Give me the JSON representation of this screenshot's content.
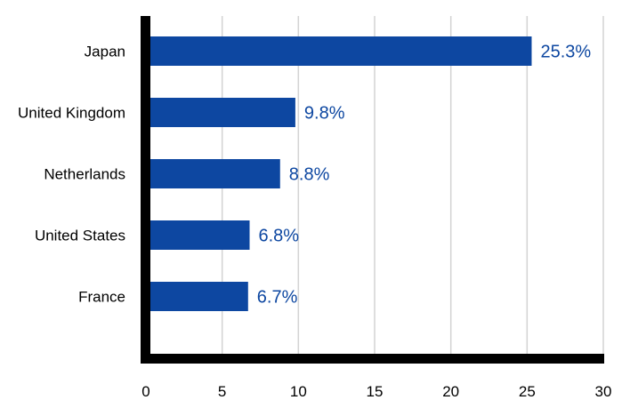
{
  "chart_data": {
    "type": "bar",
    "orientation": "horizontal",
    "categories": [
      "Japan",
      "United Kingdom",
      "Netherlands",
      "United States",
      "France"
    ],
    "values": [
      25.3,
      9.8,
      8.8,
      6.8,
      6.7
    ],
    "data_labels": [
      "25.3%",
      "9.8%",
      "8.8%",
      "6.8%",
      "6.7%"
    ],
    "xlim": [
      0,
      30
    ],
    "xticks": [
      "0",
      "5",
      "10",
      "15",
      "20",
      "25",
      "30"
    ],
    "title": "",
    "xlabel": "",
    "ylabel": "",
    "grid": "vertical",
    "legend": "none",
    "colors": {
      "bar": "#0d47a1",
      "label": "#0d47a1",
      "axis": "#000000",
      "grid": "#d3d3d3"
    }
  }
}
